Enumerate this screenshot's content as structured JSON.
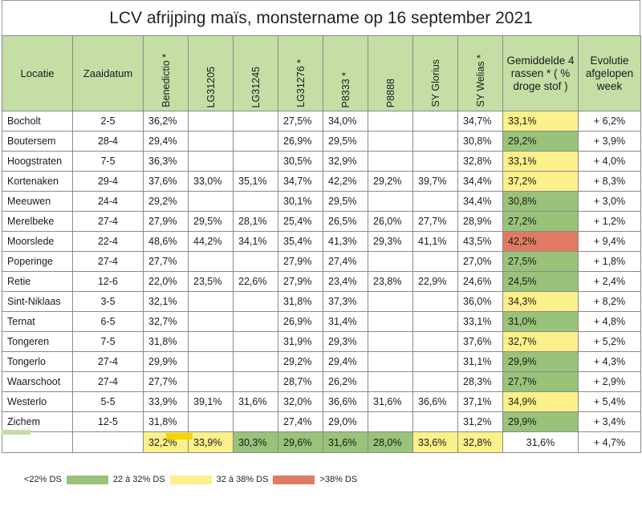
{
  "title": "LCV afrijping maïs, monstername op 16 september 2021",
  "headers": {
    "locatie": "Locatie",
    "zaaidatum": "Zaaidatum",
    "varieties": [
      "Benedictio *",
      "LG31205",
      "LG31245",
      "LG31276 *",
      "P8333 *",
      "P8888",
      "SY Glorius",
      "SY Welias *"
    ],
    "gemiddelde": "Gemiddelde 4 rassen * ( % droge stof )",
    "evolutie": "Evolutie afgelopen week"
  },
  "rows": [
    {
      "loc": "Bocholt",
      "date": "2-5",
      "v": [
        "36,2%",
        "",
        "",
        "27,5%",
        "34,0%",
        "",
        "",
        "34,7%"
      ],
      "avg": "33,1%",
      "cls": "yel",
      "evo": "+ 6,2%"
    },
    {
      "loc": "Boutersem",
      "date": "28-4",
      "v": [
        "29,4%",
        "",
        "",
        "26,9%",
        "29,5%",
        "",
        "",
        "30,8%"
      ],
      "avg": "29,2%",
      "cls": "grn",
      "evo": "+ 3,9%"
    },
    {
      "loc": "Hoogstraten",
      "date": "7-5",
      "v": [
        "36,3%",
        "",
        "",
        "30,5%",
        "32,9%",
        "",
        "",
        "32,8%"
      ],
      "avg": "33,1%",
      "cls": "yel",
      "evo": "+ 4,0%"
    },
    {
      "loc": "Kortenaken",
      "date": "29-4",
      "v": [
        "37,6%",
        "33,0%",
        "35,1%",
        "34,7%",
        "42,2%",
        "29,2%",
        "39,7%",
        "34,4%"
      ],
      "avg": "37,2%",
      "cls": "yel",
      "evo": "+ 8,3%"
    },
    {
      "loc": "Meeuwen",
      "date": "24-4",
      "v": [
        "29,2%",
        "",
        "",
        "30,1%",
        "29,5%",
        "",
        "",
        "34,4%"
      ],
      "avg": "30,8%",
      "cls": "grn",
      "evo": "+ 3,0%"
    },
    {
      "loc": "Merelbeke",
      "date": "27-4",
      "v": [
        "27,9%",
        "29,5%",
        "28,1%",
        "25,4%",
        "26,5%",
        "26,0%",
        "27,7%",
        "28,9%"
      ],
      "avg": "27,2%",
      "cls": "grn",
      "evo": "+ 1,2%"
    },
    {
      "loc": "Moorslede",
      "date": "22-4",
      "v": [
        "48,6%",
        "44,2%",
        "34,1%",
        "35,4%",
        "41,3%",
        "29,3%",
        "41,1%",
        "43,5%"
      ],
      "avg": "42,2%",
      "cls": "red",
      "evo": "+ 9,4%"
    },
    {
      "loc": "Poperinge",
      "date": "27-4",
      "v": [
        "27,7%",
        "",
        "",
        "27,9%",
        "27,4%",
        "",
        "",
        "27,0%"
      ],
      "avg": "27,5%",
      "cls": "grn",
      "evo": "+ 1,8%"
    },
    {
      "loc": "Retie",
      "date": "12-6",
      "v": [
        "22,0%",
        "23,5%",
        "22,6%",
        "27,9%",
        "23,4%",
        "23,8%",
        "22,9%",
        "24,6%"
      ],
      "avg": "24,5%",
      "cls": "grn",
      "evo": "+ 2,4%"
    },
    {
      "loc": "Sint-Niklaas",
      "date": "3-5",
      "v": [
        "32,1%",
        "",
        "",
        "31,8%",
        "37,3%",
        "",
        "",
        "36,0%"
      ],
      "avg": "34,3%",
      "cls": "yel",
      "evo": "+ 8,2%"
    },
    {
      "loc": "Ternat",
      "date": "6-5",
      "v": [
        "32,7%",
        "",
        "",
        "26,9%",
        "31,4%",
        "",
        "",
        "33,1%"
      ],
      "avg": "31,0%",
      "cls": "grn",
      "evo": "+ 4,8%"
    },
    {
      "loc": "Tongeren",
      "date": "7-5",
      "v": [
        "31,8%",
        "",
        "",
        "31,9%",
        "29,3%",
        "",
        "",
        "37,6%"
      ],
      "avg": "32,7%",
      "cls": "yel",
      "evo": "+ 5,2%"
    },
    {
      "loc": "Tongerlo",
      "date": "27-4",
      "v": [
        "29,9%",
        "",
        "",
        "29,2%",
        "29,4%",
        "",
        "",
        "31,1%"
      ],
      "avg": "29,9%",
      "cls": "grn",
      "evo": "+ 4,3%"
    },
    {
      "loc": "Waarschoot",
      "date": "27-4",
      "v": [
        "27,7%",
        "",
        "",
        "28,7%",
        "26,2%",
        "",
        "",
        "28,3%"
      ],
      "avg": "27,7%",
      "cls": "grn",
      "evo": "+ 2,9%"
    },
    {
      "loc": "Westerlo",
      "date": "5-5",
      "v": [
        "33,9%",
        "39,1%",
        "31,6%",
        "32,0%",
        "36,6%",
        "31,6%",
        "36,6%",
        "37,1%"
      ],
      "avg": "34,9%",
      "cls": "yel",
      "evo": "+ 5,4%"
    },
    {
      "loc": "Zichem",
      "date": "12-5",
      "v": [
        "31,8%",
        "",
        "",
        "27,4%",
        "29,0%",
        "",
        "",
        "31,2%"
      ],
      "avg": "29,9%",
      "cls": "grn",
      "evo": "+ 3,4%"
    }
  ],
  "totals": {
    "v": [
      "32,2%",
      "33,9%",
      "30,3%",
      "29,6%",
      "31,6%",
      "28,0%",
      "33,6%",
      "32,8%"
    ],
    "cls": [
      "yel",
      "yel",
      "grn",
      "grn",
      "grn",
      "grn",
      "yel",
      "yel"
    ],
    "avg": "31,6%",
    "evo": "+ 4,7%"
  },
  "legend": [
    {
      "label": "<22% DS",
      "color": "#c4dea6"
    },
    {
      "label": "22 à 32% DS",
      "color": "#99c27a"
    },
    {
      "label": "32 à 38% DS",
      "color": "#fbf08a"
    },
    {
      "label": ">38% DS",
      "color": "#e07a62"
    }
  ]
}
